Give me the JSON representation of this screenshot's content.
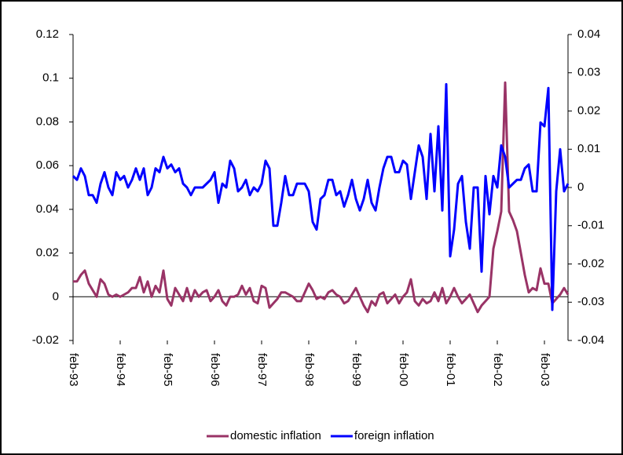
{
  "chart_data": {
    "type": "line",
    "categories": [
      "feb-93",
      null,
      null,
      null,
      null,
      null,
      null,
      null,
      null,
      null,
      null,
      null,
      "feb-94",
      null,
      null,
      null,
      null,
      null,
      null,
      null,
      null,
      null,
      null,
      null,
      "feb-95",
      null,
      null,
      null,
      null,
      null,
      null,
      null,
      null,
      null,
      null,
      null,
      "feb-96",
      null,
      null,
      null,
      null,
      null,
      null,
      null,
      null,
      null,
      null,
      null,
      "feb-97",
      null,
      null,
      null,
      null,
      null,
      null,
      null,
      null,
      null,
      null,
      null,
      "feb-98",
      null,
      null,
      null,
      null,
      null,
      null,
      null,
      null,
      null,
      null,
      null,
      "feb-99",
      null,
      null,
      null,
      null,
      null,
      null,
      null,
      null,
      null,
      null,
      null,
      "feb-00",
      null,
      null,
      null,
      null,
      null,
      null,
      null,
      null,
      null,
      null,
      null,
      "feb-01",
      null,
      null,
      null,
      null,
      null,
      null,
      null,
      null,
      null,
      null,
      null,
      "feb-02",
      null,
      null,
      null,
      null,
      null,
      null,
      null,
      null,
      null,
      null,
      null,
      "feb-03",
      null,
      null,
      null,
      null,
      null,
      null
    ],
    "series": [
      {
        "name": "domestic inflation",
        "color": "#993366",
        "values": [
          0.007,
          0.007,
          0.01,
          0.012,
          0.006,
          0.003,
          0.0,
          0.008,
          0.006,
          0.001,
          0.0,
          0.001,
          0.0,
          0.001,
          0.002,
          0.004,
          0.004,
          0.009,
          0.002,
          0.007,
          0.0,
          0.005,
          0.002,
          0.012,
          -0.001,
          -0.004,
          0.004,
          0.001,
          -0.002,
          0.004,
          -0.002,
          0.003,
          0.0,
          0.002,
          0.003,
          -0.002,
          0.0,
          0.003,
          -0.002,
          -0.004,
          0.0,
          0.0,
          0.001,
          0.005,
          0.001,
          0.004,
          -0.002,
          -0.003,
          0.005,
          0.004,
          -0.005,
          -0.003,
          -0.001,
          0.002,
          0.002,
          0.001,
          0.0,
          -0.002,
          -0.002,
          0.002,
          0.006,
          0.003,
          -0.001,
          0.0,
          -0.001,
          0.002,
          0.003,
          0.001,
          0.0,
          -0.003,
          -0.002,
          0.001,
          0.004,
          0.0,
          -0.004,
          -0.007,
          -0.002,
          -0.004,
          0.001,
          0.002,
          -0.003,
          -0.001,
          0.001,
          -0.003,
          0.0,
          0.002,
          0.008,
          -0.002,
          -0.004,
          -0.001,
          -0.003,
          -0.002,
          0.002,
          -0.002,
          0.004,
          -0.003,
          0.0,
          0.004,
          0.0,
          -0.003,
          -0.001,
          0.001,
          -0.003,
          -0.007,
          -0.004,
          -0.002,
          0.0,
          0.022,
          0.03,
          0.039,
          0.098,
          0.039,
          0.035,
          0.03,
          0.02,
          0.01,
          0.002,
          0.004,
          0.003,
          0.013,
          0.006,
          0.006,
          -0.003,
          -0.001,
          0.001,
          0.004,
          0.001
        ]
      },
      {
        "name": "foreign inflation",
        "color": "#0000ff",
        "axis": "y2",
        "values": [
          0.003,
          0.002,
          0.005,
          0.003,
          -0.002,
          -0.002,
          -0.004,
          0.001,
          0.004,
          0.0,
          -0.002,
          0.004,
          0.002,
          0.003,
          0.0,
          0.002,
          0.005,
          0.002,
          0.005,
          -0.002,
          0.0,
          0.005,
          0.004,
          0.008,
          0.005,
          0.006,
          0.004,
          0.005,
          0.001,
          0.0,
          -0.002,
          0.0,
          0.0,
          0.0,
          0.001,
          0.002,
          0.004,
          -0.004,
          0.001,
          0.0,
          0.007,
          0.005,
          -0.001,
          0.0,
          0.002,
          -0.002,
          0.0,
          -0.001,
          0.001,
          0.007,
          0.005,
          -0.01,
          -0.01,
          -0.004,
          0.003,
          -0.002,
          -0.002,
          0.001,
          0.001,
          0.001,
          -0.001,
          -0.009,
          -0.011,
          -0.003,
          -0.002,
          0.002,
          0.002,
          -0.002,
          -0.001,
          -0.005,
          -0.002,
          0.002,
          -0.003,
          -0.006,
          -0.003,
          0.002,
          -0.004,
          -0.006,
          0.0,
          0.005,
          0.008,
          0.008,
          0.004,
          0.004,
          0.007,
          0.006,
          -0.003,
          0.004,
          0.011,
          0.008,
          -0.003,
          0.014,
          -0.001,
          0.016,
          -0.006,
          0.027,
          -0.018,
          -0.011,
          0.001,
          0.003,
          -0.009,
          -0.016,
          0.0,
          0.0,
          -0.022,
          0.003,
          -0.007,
          0.003,
          0.0,
          0.011,
          0.008,
          0.0,
          0.001,
          0.002,
          0.002,
          0.005,
          0.006,
          -0.001,
          -0.001,
          0.017,
          0.016,
          0.026,
          -0.032,
          -0.001,
          0.01,
          -0.001,
          0.001
        ]
      }
    ],
    "ylim": [
      -0.02,
      0.12
    ],
    "yticks": [
      -0.02,
      0,
      0.02,
      0.04,
      0.06,
      0.08,
      0.1,
      0.12
    ],
    "y2lim": [
      -0.04,
      0.04
    ],
    "y2ticks": [
      -0.04,
      -0.03,
      -0.02,
      -0.01,
      0,
      0.01,
      0.02,
      0.03,
      0.04
    ],
    "grid": false,
    "legend": "bottom"
  }
}
